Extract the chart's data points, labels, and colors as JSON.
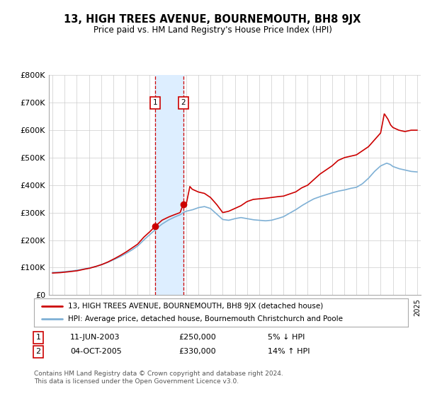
{
  "title": "13, HIGH TREES AVENUE, BOURNEMOUTH, BH8 9JX",
  "subtitle": "Price paid vs. HM Land Registry's House Price Index (HPI)",
  "legend_line1": "13, HIGH TREES AVENUE, BOURNEMOUTH, BH8 9JX (detached house)",
  "legend_line2": "HPI: Average price, detached house, Bournemouth Christchurch and Poole",
  "footnote": "Contains HM Land Registry data © Crown copyright and database right 2024.\nThis data is licensed under the Open Government Licence v3.0.",
  "transaction1": {
    "label": "1",
    "date": "11-JUN-2003",
    "price": "£250,000",
    "pct": "5% ↓ HPI",
    "year": 2003.44
  },
  "transaction2": {
    "label": "2",
    "date": "04-OCT-2005",
    "price": "£330,000",
    "pct": "14% ↑ HPI",
    "year": 2005.75
  },
  "hpi_color": "#7EB0D5",
  "price_color": "#CC0000",
  "highlight_color": "#DDEEFF",
  "background_color": "#FFFFFF",
  "grid_color": "#CCCCCC",
  "ylim": [
    0,
    800000
  ],
  "ytick_vals": [
    0,
    100000,
    200000,
    300000,
    400000,
    500000,
    600000,
    700000,
    800000
  ],
  "ytick_labels": [
    "£0",
    "£100K",
    "£200K",
    "£300K",
    "£400K",
    "£500K",
    "£600K",
    "£700K",
    "£800K"
  ],
  "xlim_left": 1994.7,
  "xlim_right": 2025.3
}
